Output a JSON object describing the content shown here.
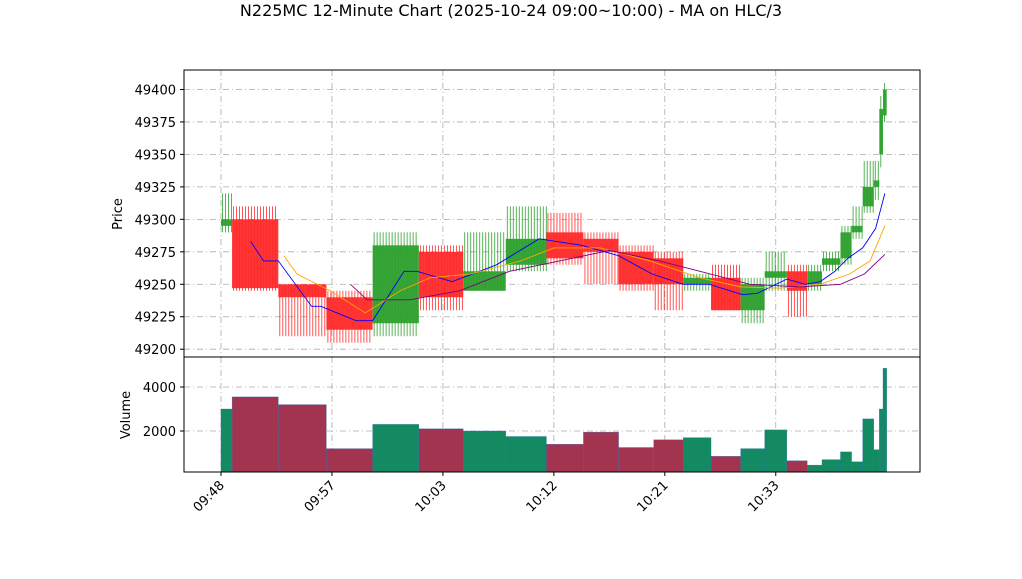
{
  "chart_data": {
    "type": "candlestick",
    "title": "N225MC 12-Minute Chart (2025-10-24 09:00~10:00) - MA on HLC/3",
    "ylabel": "Price",
    "volume_label": "Volume",
    "x": [
      0,
      6,
      31,
      57,
      82,
      107,
      131,
      154,
      176,
      196,
      215,
      234,
      250,
      265,
      281,
      294,
      306,
      317,
      325,
      335,
      341,
      347,
      353,
      356,
      358
    ],
    "open": [
      49295,
      49300,
      49250,
      49240,
      49220,
      49275,
      49245,
      49265,
      49290,
      49285,
      49275,
      49270,
      49250,
      49255,
      49230,
      49255,
      49260,
      49250,
      49265,
      49270,
      49290,
      49310,
      49325,
      49350,
      49380
    ],
    "high": [
      49320,
      49310,
      49250,
      49245,
      49290,
      49280,
      49290,
      49310,
      49305,
      49290,
      49280,
      49275,
      49258,
      49265,
      49255,
      49275,
      49265,
      49265,
      49275,
      49295,
      49310,
      49345,
      49345,
      49395,
      49405
    ],
    "low": [
      49290,
      49245,
      49210,
      49205,
      49210,
      49230,
      49245,
      49260,
      49265,
      49250,
      49245,
      49230,
      49245,
      49230,
      49220,
      49245,
      49225,
      49245,
      49260,
      49265,
      49285,
      49305,
      49315,
      49340,
      49375
    ],
    "close": [
      49300,
      49247,
      49240,
      49215,
      49280,
      49240,
      49260,
      49285,
      49270,
      49275,
      49250,
      49250,
      49255,
      49230,
      49250,
      49260,
      49245,
      49260,
      49270,
      49290,
      49295,
      49325,
      49330,
      49385,
      49400
    ],
    "volume": [
      3000,
      3550,
      3200,
      1200,
      2300,
      2100,
      2000,
      1750,
      1400,
      1950,
      1250,
      1600,
      1700,
      850,
      1200,
      2050,
      650,
      450,
      700,
      1050,
      600,
      2550,
      1150,
      3000,
      4850
    ],
    "up_color": "#2ca02c",
    "down_color": "#ff2a2a",
    "up_volume_color": "#138a62",
    "down_volume_color": "#a3344f",
    "series": [
      {
        "color": "#0000ff",
        "x": [
          16,
          23,
          31,
          49,
          54,
          73,
          82,
          99,
          106,
          125,
          149,
          172,
          195,
          215,
          233,
          250,
          264,
          282,
          290,
          306,
          316,
          324,
          332,
          339,
          347,
          354,
          359
        ],
        "values": [
          49283,
          49268,
          49268,
          49233,
          49233,
          49222,
          49222,
          49260,
          49260,
          49252,
          49265,
          49285,
          49280,
          49272,
          49258,
          49250,
          49250,
          49242,
          49243,
          49254,
          49250,
          49252,
          49260,
          49270,
          49278,
          49293,
          49320
        ]
      },
      {
        "color": "#ffa500",
        "x": [
          34,
          41,
          59,
          78,
          97,
          113,
          135,
          162,
          180,
          205,
          232,
          259,
          281,
          302,
          324,
          340,
          351,
          359
        ],
        "values": [
          49272,
          49258,
          49245,
          49228,
          49245,
          49255,
          49258,
          49268,
          49278,
          49278,
          49268,
          49255,
          49248,
          49247,
          49250,
          49258,
          49268,
          49295
        ]
      },
      {
        "color": "#800080",
        "x": [
          70,
          79,
          102,
          129,
          156,
          183,
          210,
          237,
          259,
          286,
          313,
          335,
          348,
          359
        ],
        "values": [
          49250,
          49238,
          49238,
          49245,
          49260,
          49268,
          49276,
          49268,
          49260,
          49250,
          49248,
          49250,
          49258,
          49273
        ]
      }
    ],
    "xlim": [
      -20,
      378
    ],
    "xticks": [
      {
        "value": 0,
        "label": "09:48"
      },
      {
        "value": 60,
        "label": "09:57"
      },
      {
        "value": 120,
        "label": "10:03"
      },
      {
        "value": 180,
        "label": "10:12"
      },
      {
        "value": 240,
        "label": "10:21"
      },
      {
        "value": 300,
        "label": "10:33"
      }
    ],
    "ylim": [
      49194,
      49415
    ],
    "yticks": [
      49200,
      49225,
      49250,
      49275,
      49300,
      49325,
      49350,
      49375,
      49400
    ],
    "volume_ylim": [
      136,
      5364
    ],
    "volume_yticks": [
      2000,
      4000
    ],
    "grid": true
  }
}
